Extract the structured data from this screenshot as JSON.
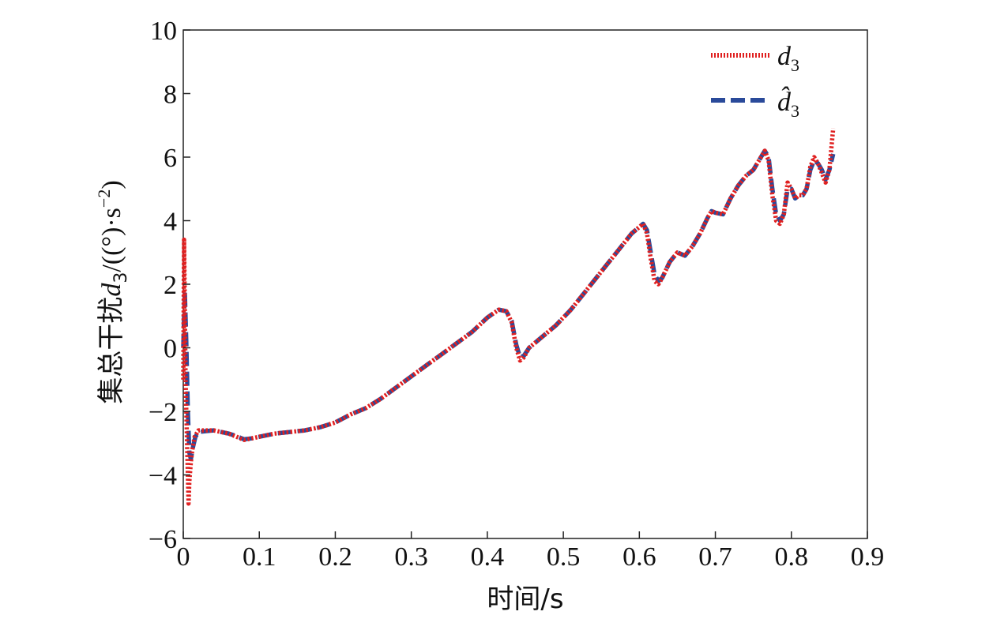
{
  "chart_data": {
    "type": "line",
    "xlabel": "时间/s",
    "ylabel_prefix": "集总干扰",
    "ylabel_var": "d",
    "ylabel_sub": "3",
    "ylabel_unit_pre": "/((°)·s",
    "ylabel_unit_sup": "−2",
    "ylabel_unit_post": ")",
    "xlim": [
      0,
      0.9
    ],
    "ylim": [
      -6,
      10
    ],
    "x_ticks": [
      0,
      0.1,
      0.2,
      0.3,
      0.4,
      0.5,
      0.6,
      0.7,
      0.8,
      0.9
    ],
    "x_tick_labels": [
      "0",
      "0.1",
      "0.2",
      "0.3",
      "0.4",
      "0.5",
      "0.6",
      "0.7",
      "0.8",
      "0.9"
    ],
    "y_ticks": [
      -6,
      -4,
      -2,
      0,
      2,
      4,
      6,
      8,
      10
    ],
    "y_tick_labels": [
      "−6",
      "−4",
      "−2",
      "0",
      "2",
      "4",
      "6",
      "8",
      "10"
    ],
    "grid": false,
    "legend_position": "top-right",
    "series": [
      {
        "name": "d",
        "name_sub": "3",
        "color": "#e02020",
        "style": "dotted",
        "x": [
          0,
          0.001,
          0.002,
          0.003,
          0.005,
          0.007,
          0.008,
          0.01,
          0.012,
          0.015,
          0.02,
          0.03,
          0.04,
          0.05,
          0.06,
          0.07,
          0.08,
          0.09,
          0.1,
          0.12,
          0.14,
          0.16,
          0.18,
          0.2,
          0.22,
          0.24,
          0.26,
          0.28,
          0.3,
          0.32,
          0.34,
          0.36,
          0.38,
          0.4,
          0.415,
          0.425,
          0.432,
          0.438,
          0.443,
          0.448,
          0.455,
          0.47,
          0.49,
          0.51,
          0.53,
          0.55,
          0.57,
          0.59,
          0.605,
          0.61,
          0.615,
          0.62,
          0.625,
          0.63,
          0.64,
          0.65,
          0.66,
          0.67,
          0.68,
          0.69,
          0.695,
          0.7,
          0.71,
          0.72,
          0.73,
          0.74,
          0.75,
          0.76,
          0.765,
          0.77,
          0.775,
          0.78,
          0.785,
          0.79,
          0.795,
          0.8,
          0.805,
          0.81,
          0.815,
          0.82,
          0.825,
          0.83,
          0.835,
          0.84,
          0.845,
          0.85,
          0.855
        ],
        "y": [
          -1.0,
          3.4,
          1.5,
          -1.0,
          -3.0,
          -4.9,
          -4.2,
          -3.6,
          -3.2,
          -2.8,
          -2.6,
          -2.6,
          -2.6,
          -2.65,
          -2.7,
          -2.8,
          -2.9,
          -2.85,
          -2.8,
          -2.7,
          -2.65,
          -2.6,
          -2.5,
          -2.35,
          -2.1,
          -1.9,
          -1.6,
          -1.25,
          -0.9,
          -0.55,
          -0.2,
          0.15,
          0.5,
          0.95,
          1.2,
          1.15,
          0.8,
          0.0,
          -0.4,
          -0.3,
          0.0,
          0.3,
          0.7,
          1.2,
          1.8,
          2.4,
          3.0,
          3.6,
          3.9,
          3.6,
          2.8,
          2.1,
          2.0,
          2.2,
          2.7,
          3.0,
          2.9,
          3.2,
          3.6,
          4.1,
          4.3,
          4.25,
          4.2,
          4.7,
          5.1,
          5.4,
          5.6,
          6.0,
          6.2,
          5.9,
          4.8,
          4.0,
          3.9,
          4.2,
          5.2,
          5.0,
          4.7,
          4.8,
          4.8,
          5.0,
          5.7,
          6.0,
          5.8,
          5.5,
          5.2,
          5.6,
          6.9
        ]
      },
      {
        "name": "d̂",
        "name_sub": "3",
        "color": "#2a4a9a",
        "style": "dashed",
        "x": [
          0,
          0.002,
          0.004,
          0.006,
          0.008,
          0.01,
          0.013,
          0.016,
          0.02,
          0.03,
          0.04,
          0.05,
          0.06,
          0.07,
          0.08,
          0.09,
          0.1,
          0.12,
          0.14,
          0.16,
          0.18,
          0.2,
          0.22,
          0.24,
          0.26,
          0.28,
          0.3,
          0.32,
          0.34,
          0.36,
          0.38,
          0.4,
          0.415,
          0.425,
          0.432,
          0.438,
          0.443,
          0.448,
          0.455,
          0.47,
          0.49,
          0.51,
          0.53,
          0.55,
          0.57,
          0.59,
          0.605,
          0.61,
          0.615,
          0.62,
          0.625,
          0.63,
          0.64,
          0.65,
          0.66,
          0.67,
          0.68,
          0.69,
          0.695,
          0.7,
          0.71,
          0.72,
          0.73,
          0.74,
          0.75,
          0.76,
          0.765,
          0.77,
          0.775,
          0.78,
          0.785,
          0.79,
          0.795,
          0.8,
          0.805,
          0.81,
          0.815,
          0.82,
          0.825,
          0.83,
          0.835,
          0.84,
          0.845,
          0.85,
          0.855
        ],
        "y": [
          0.0,
          1.8,
          0.2,
          -2.0,
          -3.3,
          -3.5,
          -3.1,
          -2.8,
          -2.65,
          -2.62,
          -2.6,
          -2.65,
          -2.7,
          -2.78,
          -2.88,
          -2.85,
          -2.8,
          -2.7,
          -2.65,
          -2.6,
          -2.5,
          -2.35,
          -2.1,
          -1.9,
          -1.6,
          -1.25,
          -0.9,
          -0.55,
          -0.2,
          0.15,
          0.5,
          0.95,
          1.2,
          1.15,
          0.85,
          0.1,
          -0.3,
          -0.25,
          0.0,
          0.3,
          0.7,
          1.2,
          1.8,
          2.4,
          3.0,
          3.6,
          3.9,
          3.7,
          3.0,
          2.3,
          2.1,
          2.2,
          2.7,
          3.0,
          2.9,
          3.2,
          3.6,
          4.1,
          4.3,
          4.25,
          4.2,
          4.7,
          5.1,
          5.4,
          5.6,
          6.0,
          6.2,
          6.0,
          5.0,
          4.2,
          4.0,
          4.2,
          5.0,
          5.0,
          4.7,
          4.8,
          4.8,
          5.0,
          5.6,
          5.9,
          5.8,
          5.6,
          5.3,
          5.6,
          6.1
        ]
      }
    ]
  }
}
